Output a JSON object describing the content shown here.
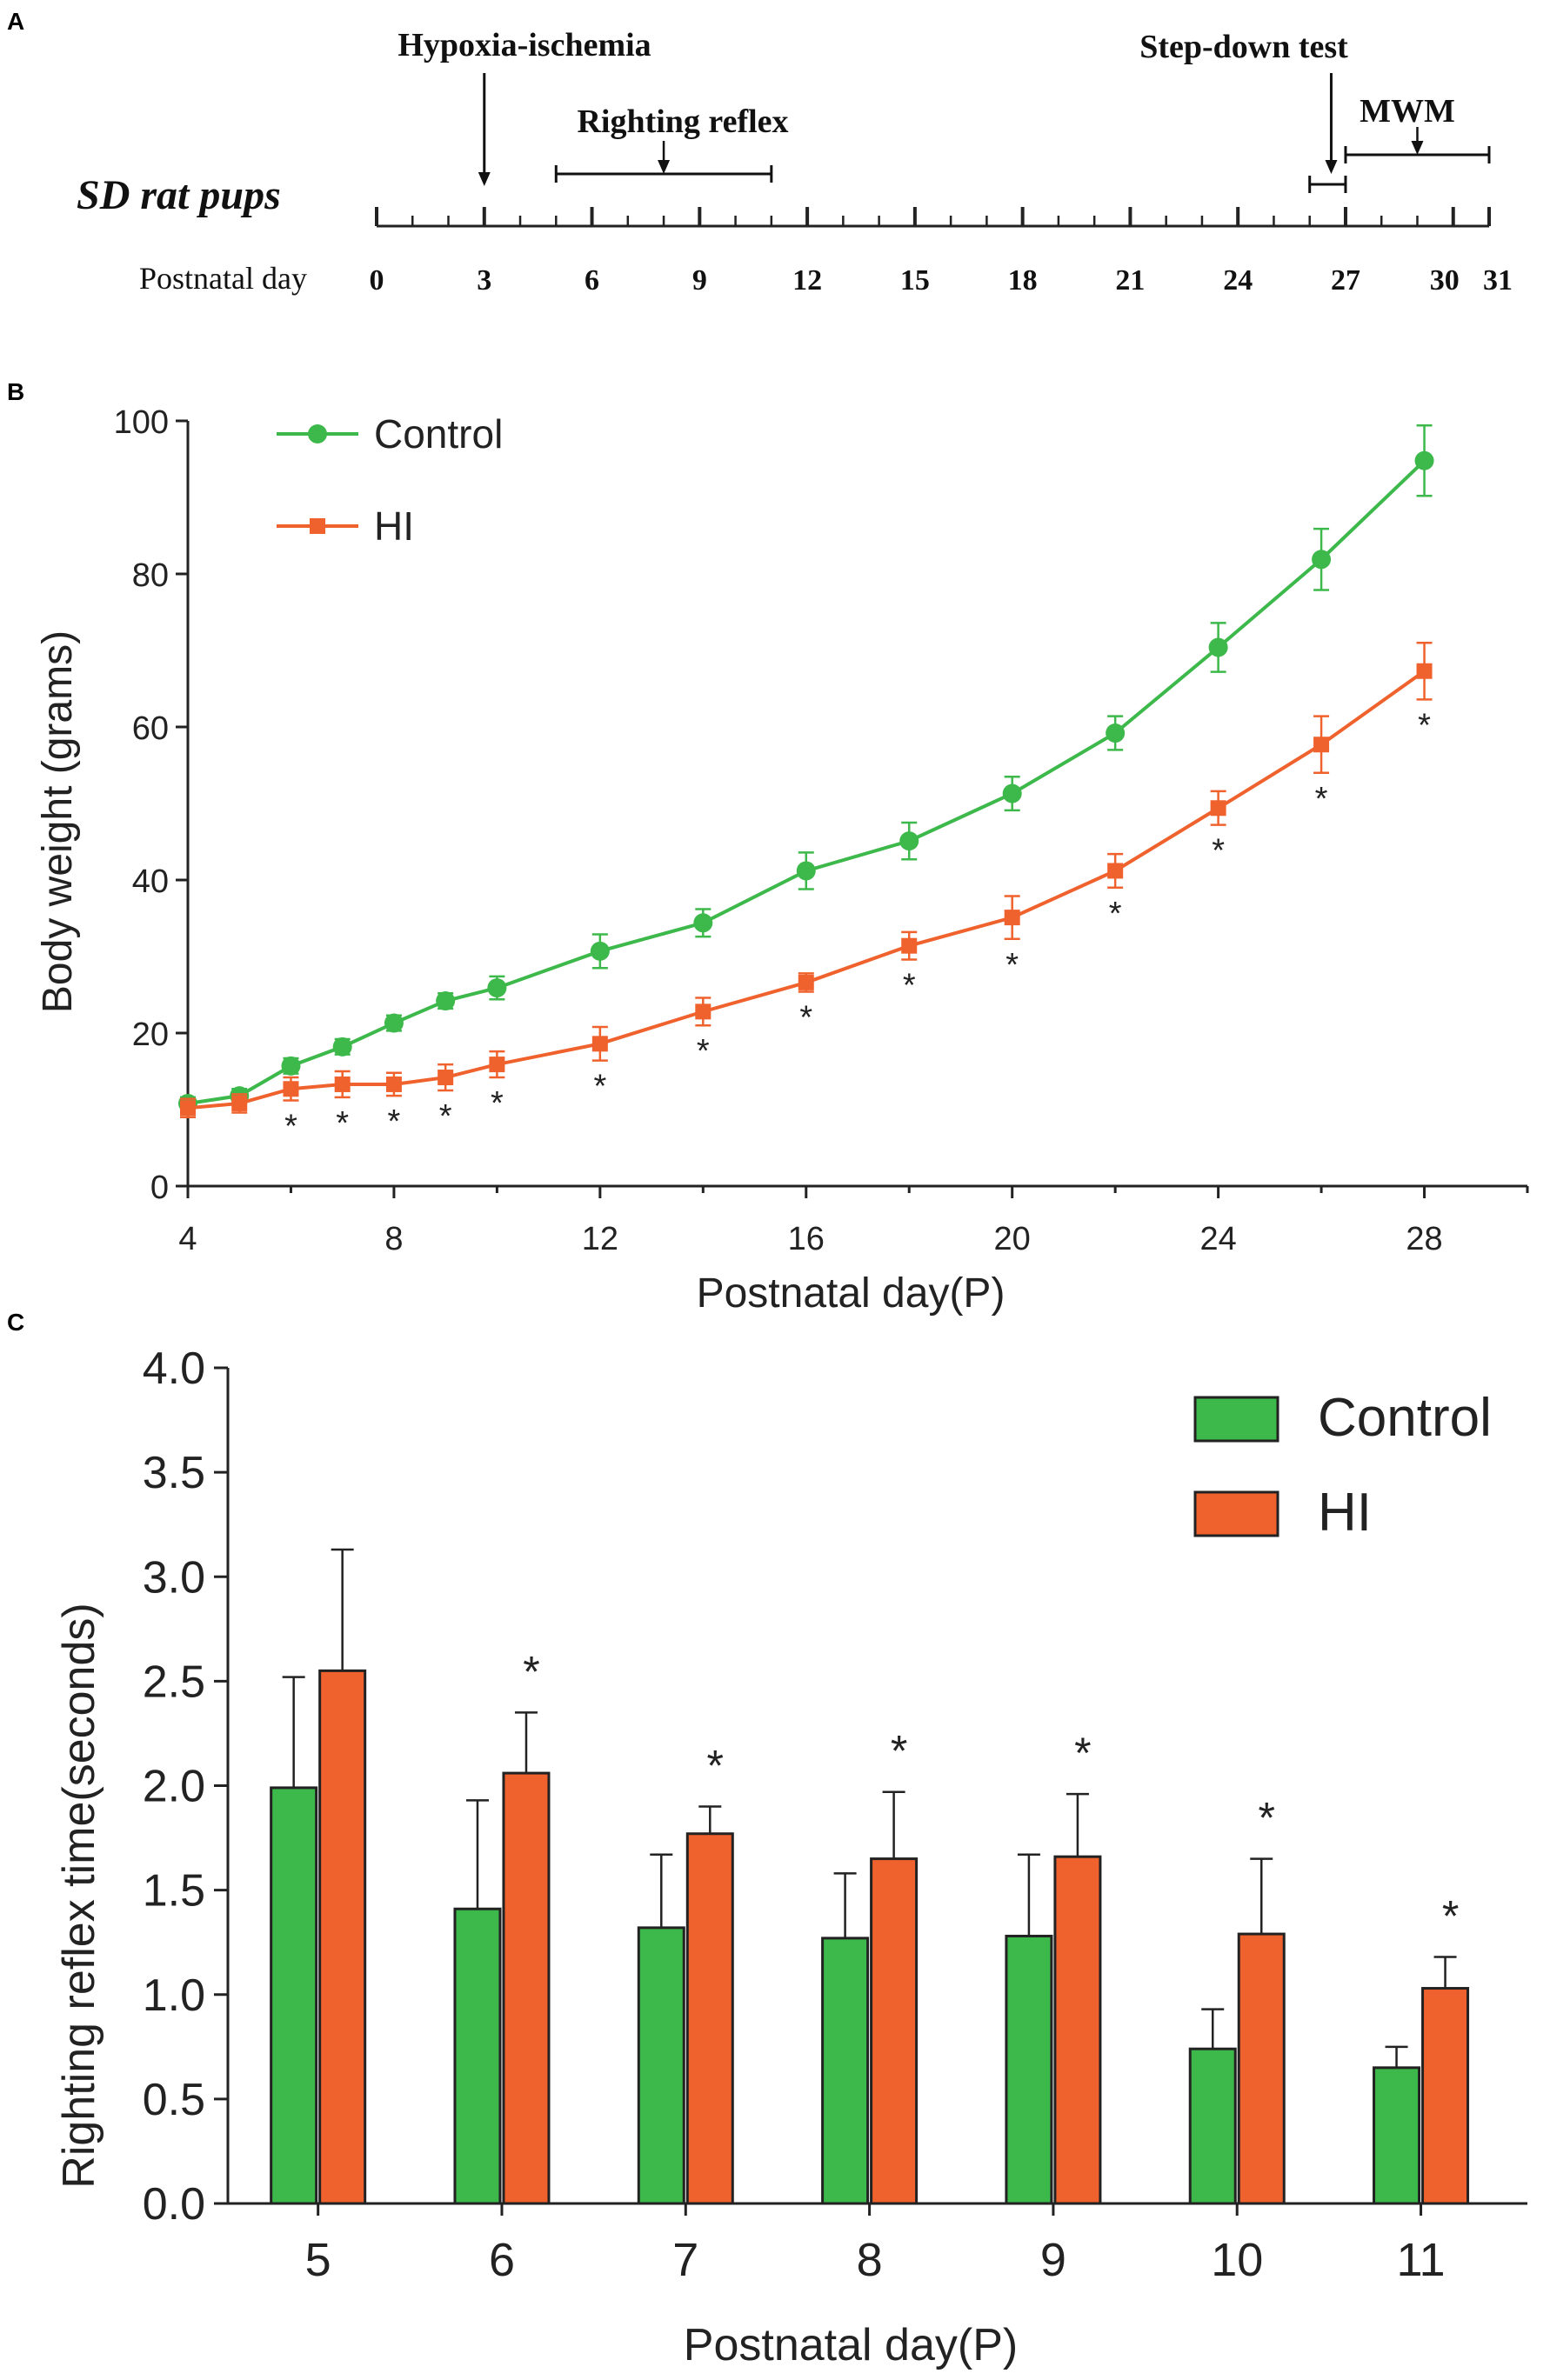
{
  "timeline": {
    "panel_label": "A",
    "subject": "SD rat pups",
    "axis_label": "Postnatal day",
    "range": [
      0,
      31
    ],
    "major_ticks": [
      0,
      3,
      6,
      9,
      12,
      15,
      18,
      21,
      24,
      27,
      30,
      31
    ],
    "events": [
      {
        "label": "Hypoxia-ischemia",
        "day": 3
      },
      {
        "label": "Righting reflex",
        "start": 5,
        "end": 11,
        "arrow_day": 8
      },
      {
        "label": "Step-down test",
        "start": 26,
        "end": 27,
        "arrow_day": 26.6
      },
      {
        "label": "MWM",
        "start": 27,
        "end": 31,
        "arrow_day": 29
      }
    ]
  },
  "chart_data": [
    {
      "panel_label": "B",
      "type": "line",
      "title": "",
      "xlabel": "Postnatal day(P)",
      "ylabel": "Body weight (grams)",
      "xlim": [
        4,
        30
      ],
      "ylim": [
        0,
        100
      ],
      "xticks": [
        4,
        8,
        12,
        16,
        20,
        24,
        28
      ],
      "yticks": [
        0,
        20,
        40,
        60,
        80,
        100
      ],
      "legend_position": "top-left",
      "significance_marker": "*",
      "series": [
        {
          "name": "Control",
          "color": "#3db84a",
          "marker": "circle",
          "x": [
            4,
            5,
            6,
            7,
            8,
            9,
            10,
            12,
            14,
            16,
            18,
            20,
            22,
            24,
            26,
            28
          ],
          "y": [
            10.8,
            11.8,
            15.7,
            18.2,
            21.3,
            24.2,
            25.9,
            30.7,
            34.4,
            41.2,
            45.1,
            51.3,
            59.2,
            70.4,
            81.9,
            94.8
          ],
          "err": [
            0.8,
            0.9,
            1.0,
            1.0,
            1.0,
            1.0,
            1.5,
            2.2,
            1.8,
            2.4,
            2.4,
            2.2,
            2.2,
            3.2,
            4.0,
            4.6
          ]
        },
        {
          "name": "HI",
          "color": "#f0622d",
          "marker": "square",
          "x": [
            4,
            5,
            6,
            7,
            8,
            9,
            10,
            12,
            14,
            16,
            18,
            20,
            22,
            24,
            26,
            28
          ],
          "y": [
            10.2,
            10.8,
            12.7,
            13.3,
            13.3,
            14.2,
            15.9,
            18.6,
            22.8,
            26.6,
            31.4,
            35.1,
            41.2,
            49.4,
            57.7,
            67.3
          ],
          "err": [
            1.2,
            1.2,
            1.5,
            1.7,
            1.5,
            1.7,
            1.7,
            2.2,
            1.8,
            1.2,
            1.8,
            2.8,
            2.2,
            2.2,
            3.7,
            3.7
          ],
          "significant": [
            false,
            false,
            true,
            true,
            true,
            true,
            true,
            true,
            true,
            true,
            true,
            true,
            true,
            true,
            true,
            true
          ]
        }
      ]
    },
    {
      "panel_label": "C",
      "type": "bar",
      "title": "",
      "xlabel": "Postnatal day(P)",
      "ylabel": "Righting reflex time(seconds)",
      "ylim": [
        0,
        4.0
      ],
      "yticks": [
        "0.0",
        "0.5",
        "1.0",
        "1.5",
        "2.0",
        "2.5",
        "3.0",
        "3.5",
        "4.0"
      ],
      "legend_position": "top-right",
      "significance_marker": "*",
      "categories": [
        "5",
        "6",
        "7",
        "8",
        "9",
        "10",
        "11"
      ],
      "series": [
        {
          "name": "Control",
          "color": "#3db84a",
          "values": [
            1.99,
            1.41,
            1.32,
            1.27,
            1.28,
            0.74,
            0.65
          ],
          "err": [
            0.53,
            0.52,
            0.35,
            0.31,
            0.39,
            0.19,
            0.1
          ]
        },
        {
          "name": "HI",
          "color": "#f0622d",
          "values": [
            2.55,
            2.06,
            1.77,
            1.65,
            1.66,
            1.29,
            1.03
          ],
          "err": [
            0.58,
            0.29,
            0.13,
            0.32,
            0.3,
            0.36,
            0.15
          ],
          "significant": [
            false,
            true,
            true,
            true,
            true,
            true,
            true
          ]
        }
      ]
    }
  ]
}
